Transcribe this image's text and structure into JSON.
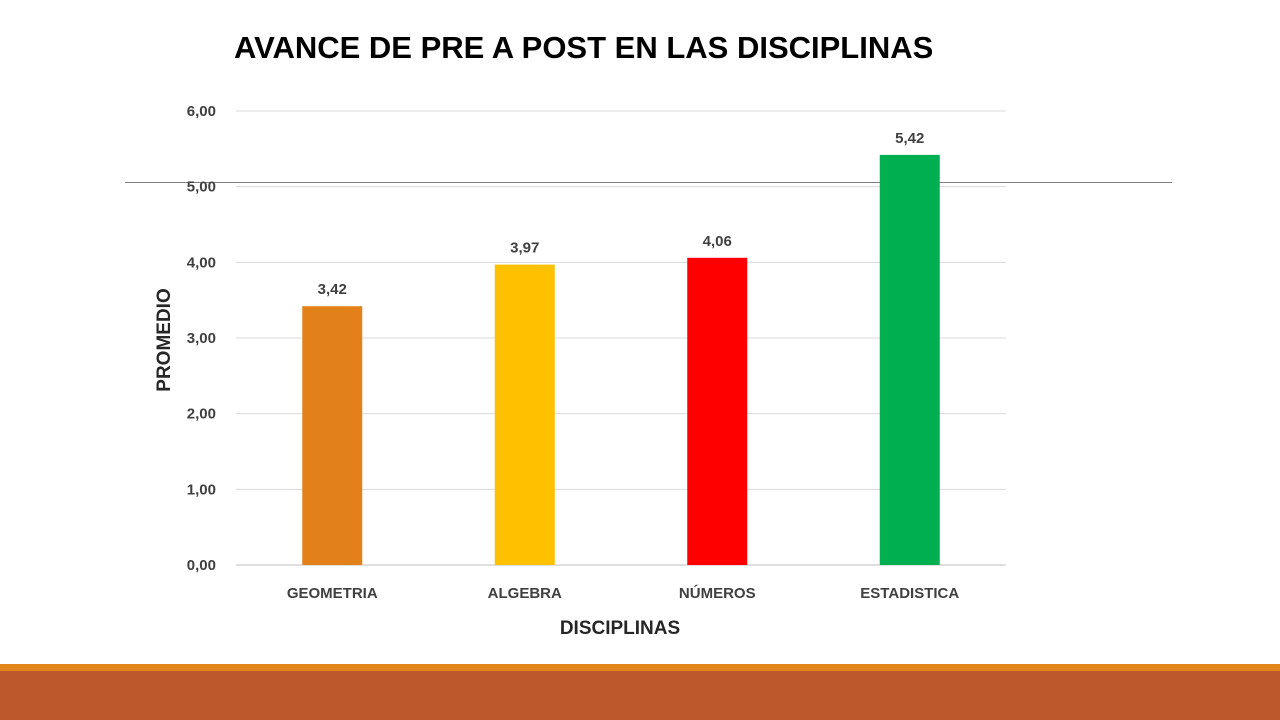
{
  "chart_data": {
    "type": "bar",
    "title": "AVANCE DE PRE A POST EN LAS DISCIPLINAS",
    "xlabel": "DISCIPLINAS",
    "ylabel": "PROMEDIO",
    "categories": [
      "GEOMETRIA",
      "ALGEBRA",
      "NÚMEROS",
      "ESTADISTICA"
    ],
    "values": [
      3.42,
      3.97,
      4.06,
      5.42
    ],
    "value_labels": [
      "3,42",
      "3,97",
      "4,06",
      "5,42"
    ],
    "bar_colors": [
      "#e2811a",
      "#ffc000",
      "#ff0000",
      "#00b050"
    ],
    "ylim": [
      0,
      6
    ],
    "y_ticks": [
      0,
      1,
      2,
      3,
      4,
      5,
      6
    ],
    "y_tick_labels": [
      "0,00",
      "1,00",
      "2,00",
      "3,00",
      "4,00",
      "5,00",
      "6,00"
    ],
    "grid": true,
    "legend": "none"
  },
  "theme": {
    "gridline_color": "#d9d9d9",
    "footer_accent": "#e2861b",
    "footer_band": "#bc582c"
  }
}
